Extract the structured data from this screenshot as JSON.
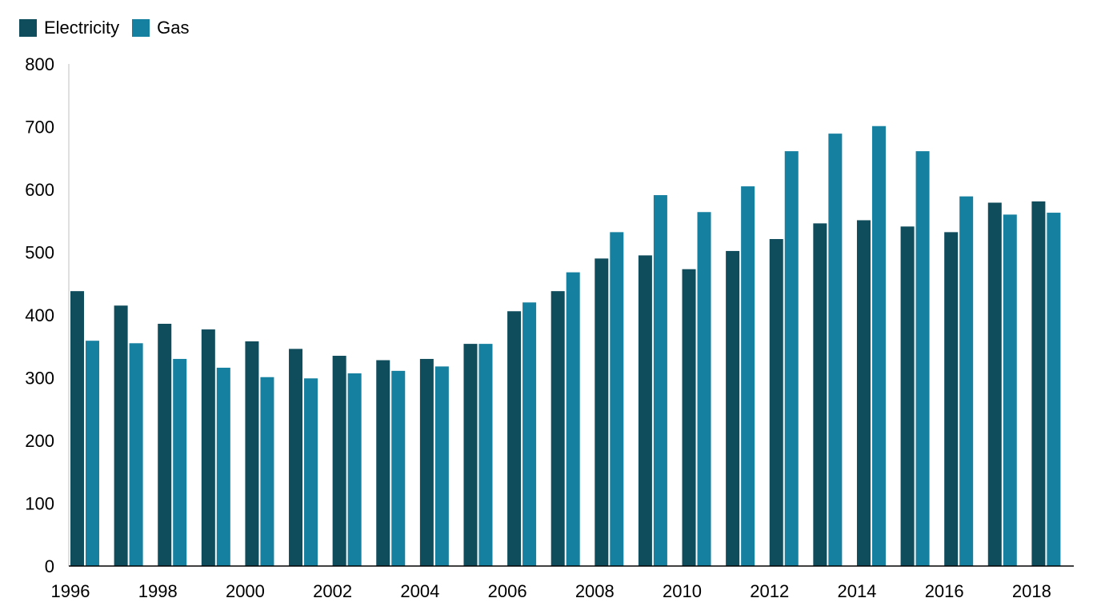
{
  "chart_data": {
    "type": "bar",
    "title": "",
    "xlabel": "",
    "ylabel": "",
    "ylim": [
      0,
      800
    ],
    "yticks": [
      "0",
      "100",
      "200",
      "300",
      "400",
      "500",
      "600",
      "700",
      "800"
    ],
    "grid": false,
    "legend_position": "top-left",
    "categories": [
      "1996",
      "1997",
      "1998",
      "1999",
      "2000",
      "2001",
      "2002",
      "2003",
      "2004",
      "2005",
      "2006",
      "2007",
      "2008",
      "2009",
      "2010",
      "2011",
      "2012",
      "2013",
      "2014",
      "2015",
      "2016",
      "2017",
      "2018"
    ],
    "xtick_labels": [
      "1996",
      "",
      "1998",
      "",
      "2000",
      "",
      "2002",
      "",
      "2004",
      "",
      "2006",
      "",
      "2008",
      "",
      "2010",
      "",
      "2012",
      "",
      "2014",
      "",
      "2016",
      "",
      "2018"
    ],
    "series": [
      {
        "name": "Electricity",
        "color": "#0f4c5c",
        "values": [
          438,
          415,
          386,
          377,
          358,
          346,
          335,
          328,
          330,
          354,
          406,
          438,
          490,
          495,
          473,
          502,
          521,
          546,
          551,
          541,
          532,
          579,
          581
        ]
      },
      {
        "name": "Gas",
        "color": "#1680a0",
        "values": [
          359,
          355,
          330,
          316,
          301,
          299,
          307,
          311,
          318,
          354,
          420,
          468,
          532,
          591,
          564,
          605,
          661,
          689,
          701,
          661,
          589,
          560,
          563
        ]
      }
    ]
  }
}
